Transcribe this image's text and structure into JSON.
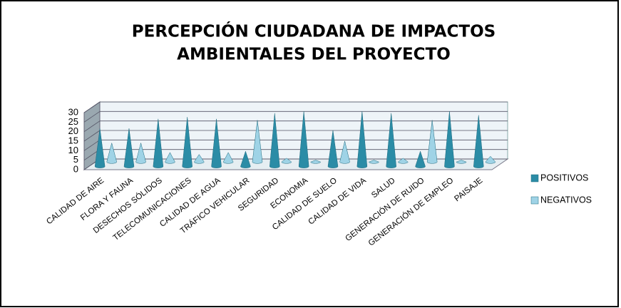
{
  "chart_data": {
    "type": "cone3d",
    "title": [
      "PERCEPCIÓN CIUDADANA DE IMPACTOS",
      "AMBIENTALES DEL PROYECTO"
    ],
    "categories": [
      "CALIDAD DE AIRE",
      "FLORA Y FAUNA",
      "DESECHOS SÓLIDOS",
      "TELECOMUNICACIONES",
      "CALIDAD DE AGUA",
      "TRÁFICO VEHICULAR",
      "SEGURIDAD",
      "ECONOMIA",
      "CALIDAD DE SUELO",
      "CALIDAD DE VIDA",
      "SALUD",
      "GENERACIÓN DE RUIDO",
      "GENERACIÓN DE EMPLEO",
      "PAISAJE"
    ],
    "series": [
      {
        "name": "POSITIVOS",
        "color": "#2b8ca6",
        "values": [
          20,
          20,
          25,
          26,
          25,
          8,
          28,
          29,
          19,
          29,
          28,
          8,
          29,
          27
        ]
      },
      {
        "name": "NEGATIVOS",
        "color": "#9fd3e6",
        "values": [
          10,
          10,
          5,
          4,
          5,
          22,
          2,
          1,
          11,
          1,
          2,
          22,
          1,
          3
        ]
      }
    ],
    "ylim": [
      0,
      30
    ],
    "yticks": [
      0,
      5,
      10,
      15,
      20,
      25,
      30
    ],
    "grid": true,
    "legend": "right"
  }
}
